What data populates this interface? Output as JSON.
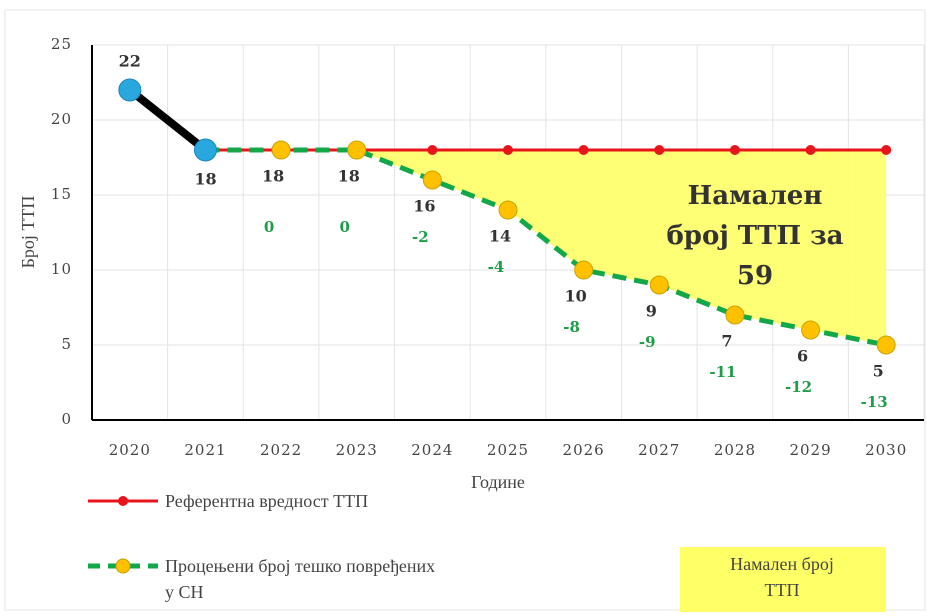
{
  "chart_data": {
    "type": "line",
    "y_label": "Број ТТП",
    "x_label": "Године",
    "categories": [
      "2020",
      "2021",
      "2022",
      "2023",
      "2024",
      "2025",
      "2026",
      "2027",
      "2028",
      "2029",
      "2030"
    ],
    "series": [
      {
        "color": "#000000",
        "marker_color": "#29a8e0",
        "values": [
          22,
          18,
          null,
          null,
          null,
          null,
          null,
          null,
          null,
          null,
          null
        ]
      },
      {
        "name": "Референтна вредност ТТП",
        "color": "#e8141b",
        "values": [
          null,
          18,
          18,
          18,
          18,
          18,
          18,
          18,
          18,
          18,
          18
        ]
      },
      {
        "name": [
          "Процењени број тешко повређених",
          "у СН"
        ],
        "color": "#12a84a",
        "marker_color": "#ffc000",
        "values": [
          null,
          18,
          18,
          18,
          16,
          14,
          10,
          9,
          7,
          6,
          5
        ]
      }
    ],
    "differences": [
      null,
      null,
      0,
      0,
      -2,
      -4,
      -8,
      -9,
      -11,
      -12,
      -13
    ],
    "area_name": [
      "Намален број",
      "ТТП"
    ],
    "annotation": [
      "Намален",
      "број ТТП за",
      "59"
    ],
    "ylim": [
      0,
      25
    ],
    "yticks": [
      0,
      5,
      10,
      15,
      20,
      25
    ],
    "grid": true
  }
}
